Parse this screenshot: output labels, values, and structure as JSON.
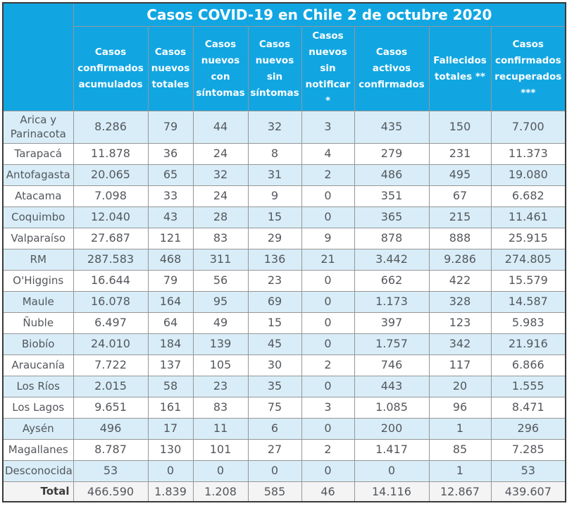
{
  "title": "Casos COVID-19 en Chile 2 de octubre 2020",
  "chart_data": {
    "type": "table",
    "title": "Casos COVID-19 en Chile 2 de octubre 2020",
    "columns": [
      "Casos confirmados acumulados",
      "Casos nuevos totales",
      "Casos nuevos con síntomas",
      "Casos nuevos sin síntomas",
      "Casos nuevos sin notificar *",
      "Casos activos confirmados",
      "Fallecidos totales **",
      "Casos confirmados recuperados ***"
    ],
    "rows": [
      {
        "region": "Arica y Parinacota",
        "values": [
          "8.286",
          "79",
          "44",
          "32",
          "3",
          "435",
          "150",
          "7.700"
        ]
      },
      {
        "region": "Tarapacá",
        "values": [
          "11.878",
          "36",
          "24",
          "8",
          "4",
          "279",
          "231",
          "11.373"
        ]
      },
      {
        "region": "Antofagasta",
        "values": [
          "20.065",
          "65",
          "32",
          "31",
          "2",
          "486",
          "495",
          "19.080"
        ]
      },
      {
        "region": "Atacama",
        "values": [
          "7.098",
          "33",
          "24",
          "9",
          "0",
          "351",
          "67",
          "6.682"
        ]
      },
      {
        "region": "Coquimbo",
        "values": [
          "12.040",
          "43",
          "28",
          "15",
          "0",
          "365",
          "215",
          "11.461"
        ]
      },
      {
        "region": "Valparaíso",
        "values": [
          "27.687",
          "121",
          "83",
          "29",
          "9",
          "878",
          "888",
          "25.915"
        ]
      },
      {
        "region": "RM",
        "values": [
          "287.583",
          "468",
          "311",
          "136",
          "21",
          "3.442",
          "9.286",
          "274.805"
        ]
      },
      {
        "region": "O'Higgins",
        "values": [
          "16.644",
          "79",
          "56",
          "23",
          "0",
          "662",
          "422",
          "15.579"
        ]
      },
      {
        "region": "Maule",
        "values": [
          "16.078",
          "164",
          "95",
          "69",
          "0",
          "1.173",
          "328",
          "14.587"
        ]
      },
      {
        "region": "Ñuble",
        "values": [
          "6.497",
          "64",
          "49",
          "15",
          "0",
          "397",
          "123",
          "5.983"
        ]
      },
      {
        "region": "Biobío",
        "values": [
          "24.010",
          "184",
          "139",
          "45",
          "0",
          "1.757",
          "342",
          "21.916"
        ]
      },
      {
        "region": "Araucanía",
        "values": [
          "7.722",
          "137",
          "105",
          "30",
          "2",
          "746",
          "117",
          "6.866"
        ]
      },
      {
        "region": "Los Ríos",
        "values": [
          "2.015",
          "58",
          "23",
          "35",
          "0",
          "443",
          "20",
          "1.555"
        ]
      },
      {
        "region": "Los Lagos",
        "values": [
          "9.651",
          "161",
          "83",
          "75",
          "3",
          "1.085",
          "96",
          "8.471"
        ]
      },
      {
        "region": "Aysén",
        "values": [
          "496",
          "17",
          "11",
          "6",
          "0",
          "200",
          "1",
          "296"
        ]
      },
      {
        "region": "Magallanes",
        "values": [
          "8.787",
          "130",
          "101",
          "27",
          "2",
          "1.417",
          "85",
          "7.285"
        ]
      },
      {
        "region": "Desconocida",
        "values": [
          "53",
          "0",
          "0",
          "0",
          "0",
          "0",
          "1",
          "53"
        ]
      }
    ],
    "total": {
      "label": "Total",
      "values": [
        "466.590",
        "1.839",
        "1.208",
        "585",
        "46",
        "14.116",
        "12.867",
        "439.607"
      ]
    }
  },
  "colors": {
    "header_blue": "#11a6e2",
    "row_alt_blue": "#d8edf8",
    "row_white": "#ffffff",
    "total_row_bg": "#f4f4f4",
    "grid_border": "#969696",
    "outer_border": "#3a3a3a",
    "cell_text": "#54575c",
    "header_text": "#ffffff"
  }
}
